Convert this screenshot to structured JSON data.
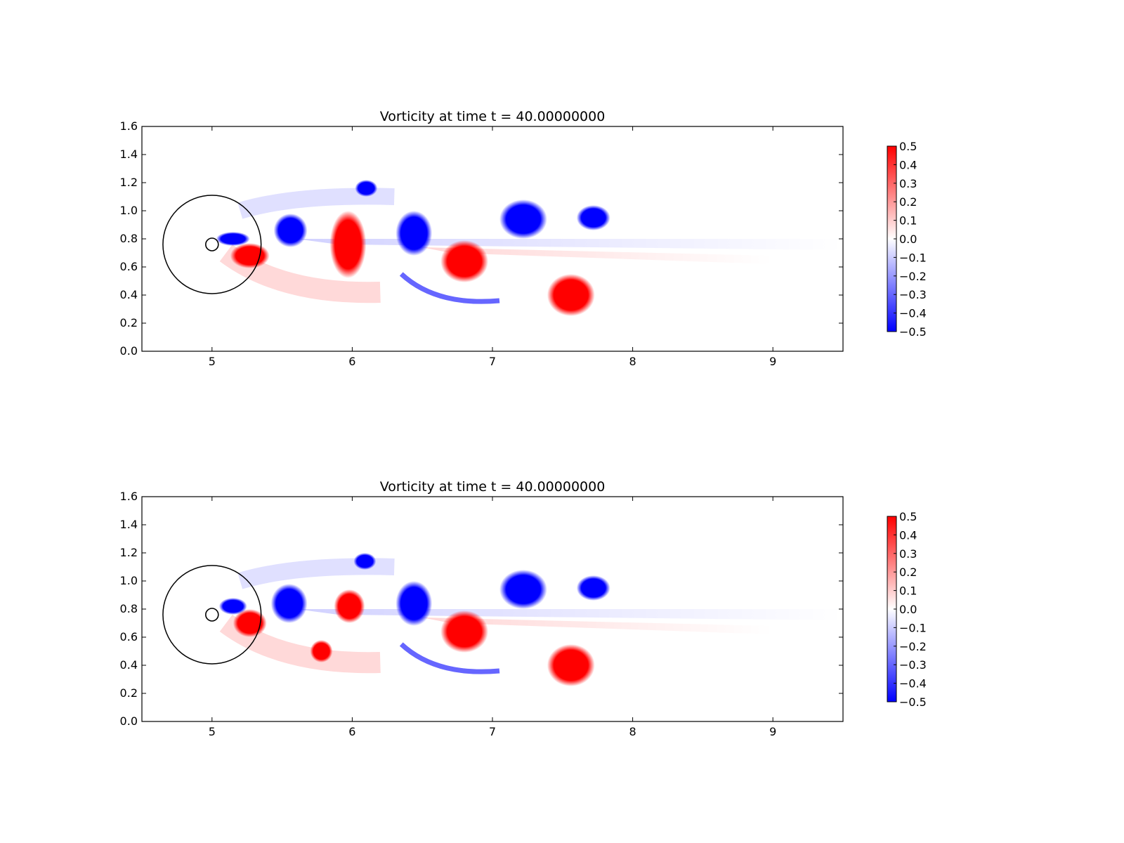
{
  "chart_data": [
    {
      "type": "heatmap",
      "title": "Vorticity at time t =    40.00000000",
      "xlabel": "",
      "ylabel": "",
      "xlim": [
        4.5,
        9.5
      ],
      "ylim": [
        0.0,
        1.6
      ],
      "x_ticks": [
        "5",
        "6",
        "7",
        "8",
        "9"
      ],
      "y_ticks": [
        "0.0",
        "0.2",
        "0.4",
        "0.6",
        "0.8",
        "1.0",
        "1.2",
        "1.4",
        "1.6"
      ],
      "grid": false,
      "colorbar": {
        "range": [
          -0.5,
          0.5
        ],
        "ticks": [
          "0.5",
          "0.4",
          "0.3",
          "0.2",
          "0.1",
          "0.0",
          "−0.1",
          "−0.2",
          "−0.3",
          "−0.4",
          "−0.5"
        ],
        "colors": {
          "low": "#0000ff",
          "mid": "#ffffff",
          "high": "#ff0000"
        }
      },
      "circles": [
        {
          "x": 5.0,
          "y": 0.76,
          "r": 0.35
        },
        {
          "x": 5.0,
          "y": 0.76,
          "r": 0.045
        }
      ],
      "vortices": [
        {
          "x": 6.44,
          "y": 0.84,
          "rx": 0.13,
          "ry": 0.16,
          "value": -0.5
        },
        {
          "x": 6.8,
          "y": 0.64,
          "rx": 0.17,
          "ry": 0.15,
          "value": 0.5
        },
        {
          "x": 7.22,
          "y": 0.94,
          "rx": 0.17,
          "ry": 0.14,
          "value": -0.5
        },
        {
          "x": 7.56,
          "y": 0.4,
          "rx": 0.17,
          "ry": 0.15,
          "value": 0.5
        },
        {
          "x": 7.72,
          "y": 0.95,
          "rx": 0.12,
          "ry": 0.09,
          "value": -0.5
        },
        {
          "x": 6.1,
          "y": 1.16,
          "rx": 0.08,
          "ry": 0.06,
          "value": -0.5
        },
        {
          "x": 5.56,
          "y": 0.86,
          "rx": 0.12,
          "ry": 0.12,
          "value": -0.5
        },
        {
          "x": 5.97,
          "y": 0.76,
          "rx": 0.13,
          "ry": 0.24,
          "value": 0.5
        },
        {
          "x": 5.27,
          "y": 0.68,
          "rx": 0.14,
          "ry": 0.09,
          "value": 0.5
        },
        {
          "x": 5.15,
          "y": 0.8,
          "rx": 0.12,
          "ry": 0.05,
          "value": -0.5
        }
      ]
    },
    {
      "type": "heatmap",
      "title": "Vorticity at time t =    40.00000000",
      "xlabel": "",
      "ylabel": "",
      "xlim": [
        4.5,
        9.5
      ],
      "ylim": [
        0.0,
        1.6
      ],
      "x_ticks": [
        "5",
        "6",
        "7",
        "8",
        "9"
      ],
      "y_ticks": [
        "0.0",
        "0.2",
        "0.4",
        "0.6",
        "0.8",
        "1.0",
        "1.2",
        "1.4",
        "1.6"
      ],
      "grid": false,
      "colorbar": {
        "range": [
          -0.5,
          0.5
        ],
        "ticks": [
          "0.5",
          "0.4",
          "0.3",
          "0.2",
          "0.1",
          "0.0",
          "−0.1",
          "−0.2",
          "−0.3",
          "−0.4",
          "−0.5"
        ],
        "colors": {
          "low": "#0000ff",
          "mid": "#ffffff",
          "high": "#ff0000"
        }
      },
      "circles": [
        {
          "x": 5.0,
          "y": 0.76,
          "r": 0.35
        },
        {
          "x": 5.0,
          "y": 0.76,
          "r": 0.045
        }
      ],
      "vortices": [
        {
          "x": 6.44,
          "y": 0.84,
          "rx": 0.13,
          "ry": 0.16,
          "value": -0.5
        },
        {
          "x": 6.8,
          "y": 0.64,
          "rx": 0.17,
          "ry": 0.15,
          "value": 0.5
        },
        {
          "x": 7.22,
          "y": 0.94,
          "rx": 0.17,
          "ry": 0.14,
          "value": -0.5
        },
        {
          "x": 7.56,
          "y": 0.4,
          "rx": 0.17,
          "ry": 0.15,
          "value": 0.5
        },
        {
          "x": 7.72,
          "y": 0.95,
          "rx": 0.12,
          "ry": 0.09,
          "value": -0.5
        },
        {
          "x": 6.09,
          "y": 1.14,
          "rx": 0.08,
          "ry": 0.06,
          "value": -0.5
        },
        {
          "x": 5.55,
          "y": 0.84,
          "rx": 0.13,
          "ry": 0.14,
          "value": -0.5
        },
        {
          "x": 5.98,
          "y": 0.82,
          "rx": 0.11,
          "ry": 0.12,
          "value": 0.5
        },
        {
          "x": 5.78,
          "y": 0.5,
          "rx": 0.08,
          "ry": 0.08,
          "value": 0.5
        },
        {
          "x": 5.27,
          "y": 0.7,
          "rx": 0.12,
          "ry": 0.1,
          "value": 0.5
        },
        {
          "x": 5.15,
          "y": 0.82,
          "rx": 0.1,
          "ry": 0.06,
          "value": -0.5
        }
      ]
    }
  ]
}
